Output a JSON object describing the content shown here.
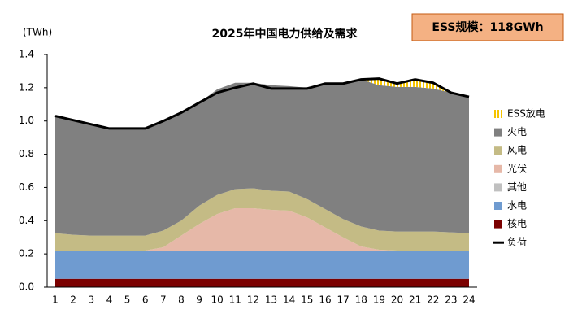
{
  "chart_data": {
    "type": "stacked_area",
    "title": "2025年中国电力供给及需求",
    "y_label": "(TWh)",
    "annotation": "ESS规模：118GWh",
    "categories": [
      1,
      2,
      3,
      4,
      5,
      6,
      7,
      8,
      9,
      10,
      11,
      12,
      13,
      14,
      15,
      16,
      17,
      18,
      19,
      20,
      21,
      22,
      23,
      24
    ],
    "ylim": [
      0,
      1.4
    ],
    "yticks": [
      {
        "value": 0,
        "label": "0.0"
      },
      {
        "value": 0.2,
        "label": "0.2"
      },
      {
        "value": 0.4,
        "label": "0.4"
      },
      {
        "value": 0.6,
        "label": "0.6"
      },
      {
        "value": 0.8,
        "label": "0.8"
      },
      {
        "value": 1,
        "label": "1.0"
      },
      {
        "value": 1.2,
        "label": "1.2"
      },
      {
        "value": 1.4,
        "label": "1.4"
      }
    ],
    "grid": false,
    "legend": "right",
    "series": [
      {
        "name": "核电",
        "color": "#7b0000",
        "values": [
          0.05,
          0.05,
          0.05,
          0.05,
          0.05,
          0.05,
          0.05,
          0.05,
          0.05,
          0.05,
          0.05,
          0.05,
          0.05,
          0.05,
          0.05,
          0.05,
          0.05,
          0.05,
          0.05,
          0.05,
          0.05,
          0.05,
          0.05,
          0.05
        ]
      },
      {
        "name": "水电",
        "color": "#6f9bd0",
        "values": [
          0.17,
          0.17,
          0.17,
          0.17,
          0.17,
          0.17,
          0.17,
          0.17,
          0.17,
          0.17,
          0.17,
          0.17,
          0.17,
          0.17,
          0.17,
          0.17,
          0.17,
          0.17,
          0.17,
          0.17,
          0.17,
          0.17,
          0.17,
          0.17
        ]
      },
      {
        "name": "其他",
        "color": "#c0c0c0",
        "values": [
          0,
          0,
          0,
          0,
          0,
          0,
          0,
          0,
          0,
          0,
          0,
          0,
          0,
          0,
          0,
          0,
          0,
          0,
          0,
          0,
          0,
          0,
          0,
          0
        ]
      },
      {
        "name": "光伏",
        "color": "#e6b8a8",
        "values": [
          0,
          0,
          0,
          0,
          0,
          0,
          0.02,
          0.09,
          0.16,
          0.22,
          0.255,
          0.255,
          0.245,
          0.24,
          0.2,
          0.14,
          0.08,
          0.025,
          0.005,
          0,
          0,
          0,
          0,
          0
        ]
      },
      {
        "name": "风电",
        "color": "#c4bb85",
        "values": [
          0.105,
          0.095,
          0.09,
          0.09,
          0.09,
          0.09,
          0.1,
          0.09,
          0.11,
          0.115,
          0.115,
          0.12,
          0.115,
          0.115,
          0.11,
          0.11,
          0.11,
          0.12,
          0.115,
          0.115,
          0.115,
          0.115,
          0.11,
          0.105
        ]
      },
      {
        "name": "火电",
        "color": "#808080",
        "values": [
          0.705,
          0.695,
          0.67,
          0.645,
          0.645,
          0.645,
          0.66,
          0.65,
          0.62,
          0.635,
          0.64,
          0.635,
          0.635,
          0.635,
          0.67,
          0.75,
          0.815,
          0.885,
          0.875,
          0.87,
          0.87,
          0.86,
          0.84,
          0.82
        ]
      },
      {
        "name": "ESS放电",
        "color": "#f5c400",
        "pattern": "hatch",
        "values": [
          0,
          0,
          0,
          0,
          0,
          0,
          0,
          0,
          0,
          0,
          0,
          0,
          0,
          0,
          0,
          0,
          0,
          0,
          0.04,
          0.02,
          0.045,
          0.03,
          0,
          0
        ]
      }
    ],
    "line_series": {
      "name": "负荷",
      "color": "#000000",
      "values": [
        1.03,
        1.005,
        0.98,
        0.955,
        0.955,
        0.955,
        1.0,
        1.05,
        1.11,
        1.17,
        1.2,
        1.225,
        1.195,
        1.195,
        1.195,
        1.225,
        1.225,
        1.25,
        1.255,
        1.225,
        1.25,
        1.23,
        1.17,
        1.145
      ]
    }
  }
}
